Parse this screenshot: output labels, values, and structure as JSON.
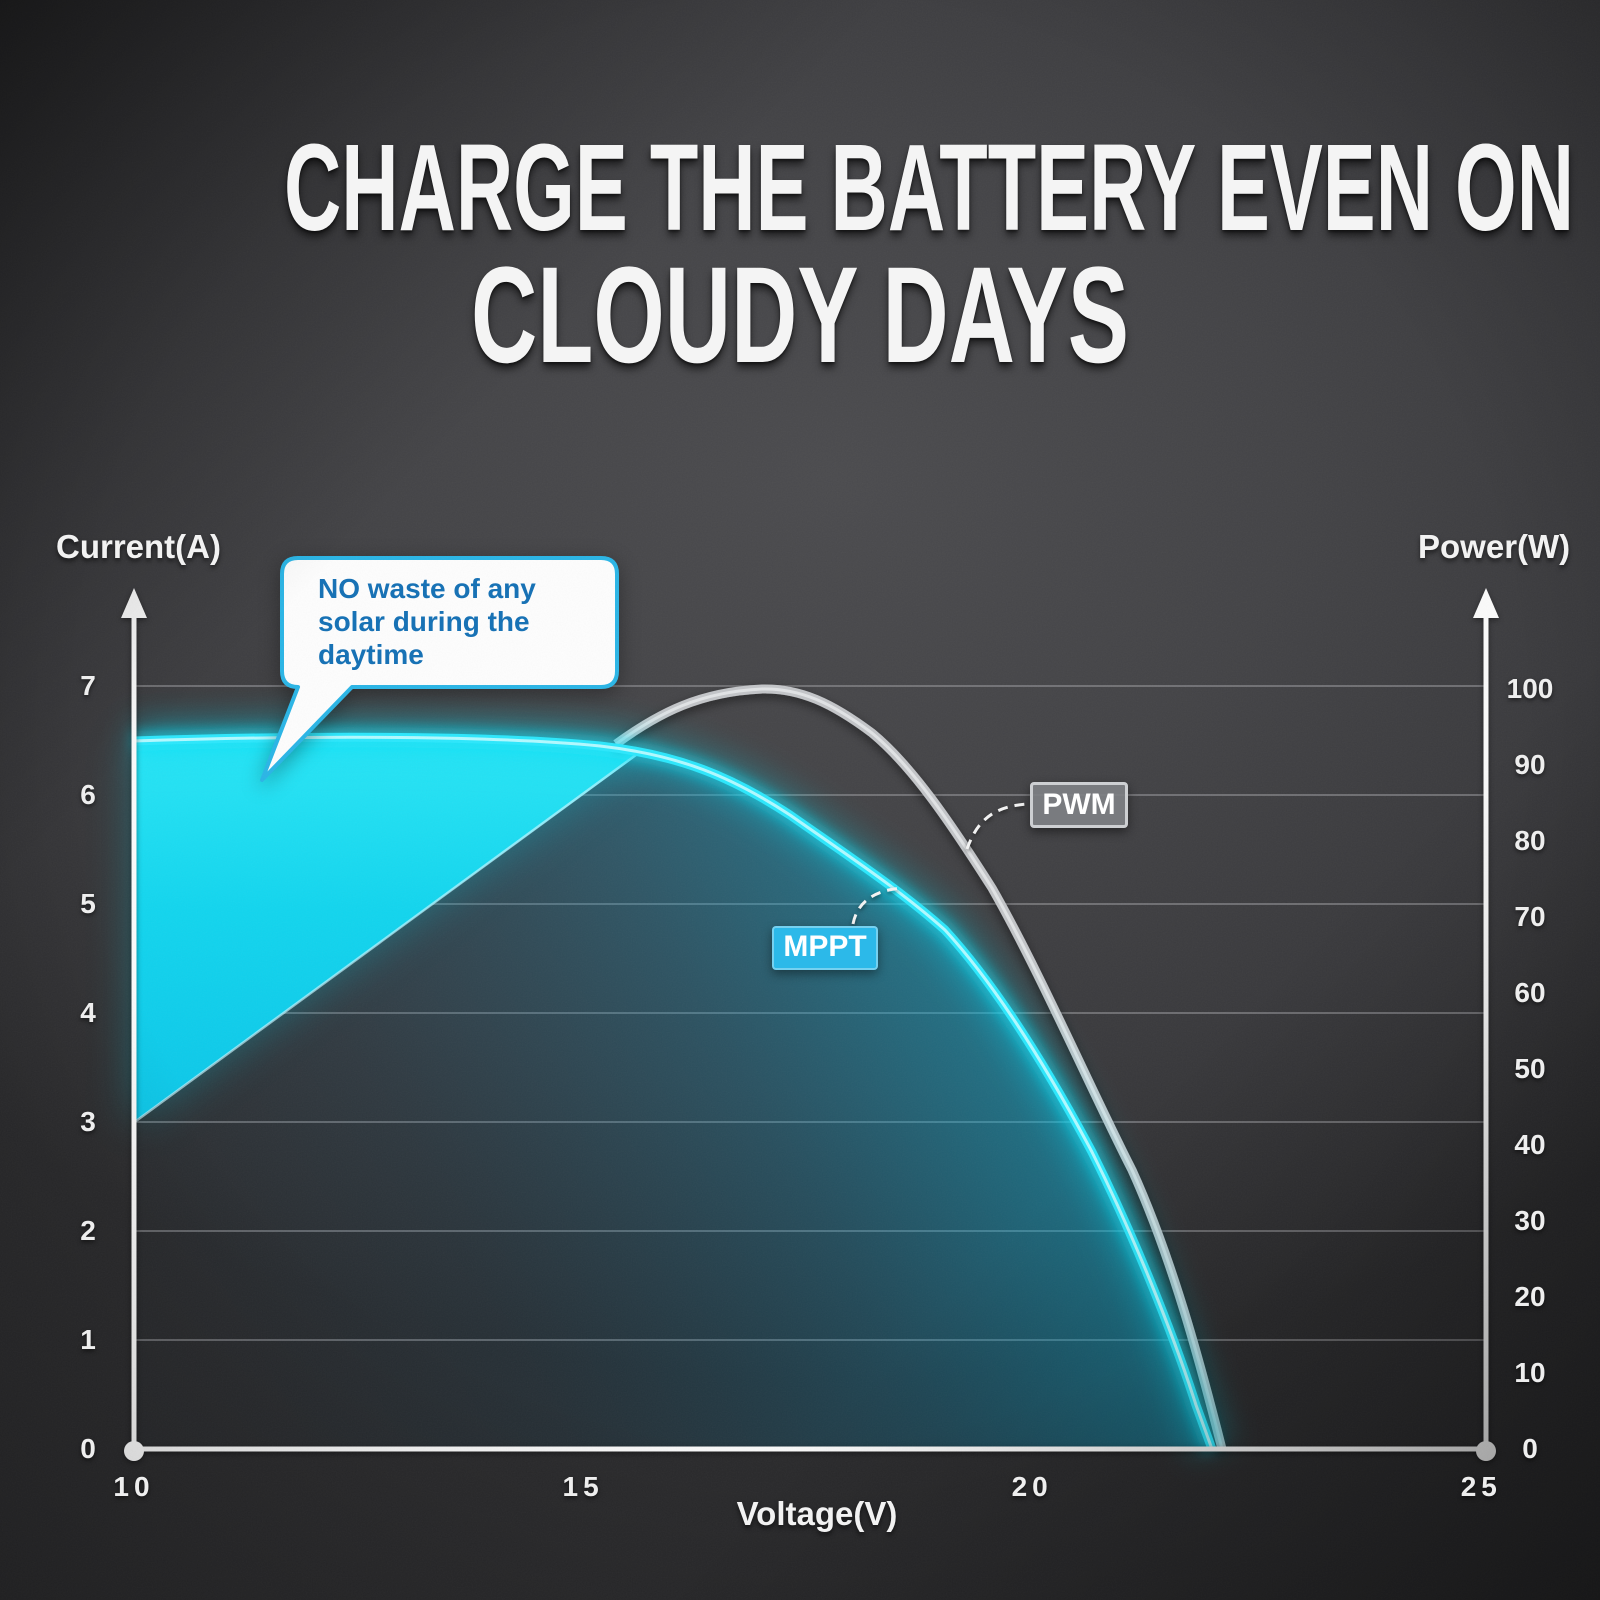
{
  "title": {
    "line1": "CHARGE THE BATTERY EVEN ON",
    "line2": "CLOUDY DAYS"
  },
  "chart": {
    "left_axis_title": "Current(A)",
    "right_axis_title": "Power(W)",
    "x_axis_title": "Voltage(V)",
    "left_ticks": [
      "0",
      "1",
      "2",
      "3",
      "4",
      "5",
      "6",
      "7"
    ],
    "right_ticks": [
      "0",
      "10",
      "20",
      "30",
      "40",
      "50",
      "60",
      "70",
      "80",
      "90",
      "100"
    ],
    "x_ticks": [
      "10",
      "15",
      "20",
      "25"
    ],
    "series_labels": {
      "pwm": "PWM",
      "mppt": "MPPT"
    },
    "callout": {
      "line1": "NO waste of any",
      "line2": "solar during the",
      "line3": "daytime"
    }
  },
  "colors": {
    "accent_cyan": "#17d7ef",
    "cyan_core": "#39e9fd",
    "wedge_top": "#2ae6f6",
    "wedge_bottom": "#0cc6e8",
    "callout_border": "#2ab5e6",
    "callout_text_blue": "#1872b5",
    "pwm_curve_gray": "#c3c5c8",
    "label_box_gray": "#7e8084",
    "mppt_box_cyan": "#2cb9e9",
    "gridline_gray": "#98989c",
    "axis_white": "#fafafa",
    "background_dark": "#3a3a3d"
  },
  "chart_data": {
    "type": "line",
    "title": "MPPT vs PWM solar charging comparison",
    "xlabel": "Voltage(V)",
    "ylabel_left": "Current(A)",
    "ylabel_right": "Power(W)",
    "x_range": [
      10,
      25
    ],
    "ylim_left": [
      0,
      7
    ],
    "ylim_right": [
      0,
      100
    ],
    "grid": "horizontal lines at each left-axis integer 1-7",
    "legend_position": "inline labels with dashed connectors",
    "series": [
      {
        "name": "MPPT (panel I-V curve, left axis, amps)",
        "axis": "left",
        "style": "bright cyan glowing line, area under curve shaded cyan",
        "points_V_A": [
          [
            10,
            6.5
          ],
          [
            11.9,
            6.53
          ],
          [
            13.6,
            6.53
          ],
          [
            15.0,
            6.47
          ],
          [
            15.9,
            6.34
          ],
          [
            16.8,
            6.14
          ],
          [
            17.5,
            5.75
          ],
          [
            18.2,
            5.33
          ],
          [
            18.9,
            4.76
          ],
          [
            19.5,
            4.12
          ],
          [
            20.2,
            3.37
          ],
          [
            20.8,
            2.61
          ],
          [
            21.3,
            1.55
          ],
          [
            21.8,
            0.54
          ],
          [
            22.0,
            0
          ]
        ]
      },
      {
        "name": "PWM (power curve, right axis, watts)",
        "axis": "right",
        "style": "gray line",
        "points_V_W": [
          [
            15.3,
            93
          ],
          [
            15.9,
            98
          ],
          [
            16.3,
            99.9
          ],
          [
            17.1,
            100
          ],
          [
            17.6,
            98.6
          ],
          [
            18.2,
            94.6
          ],
          [
            18.8,
            88.7
          ],
          [
            19.3,
            78.9
          ],
          [
            19.6,
            71.6
          ],
          [
            20.2,
            57.8
          ],
          [
            20.6,
            47.6
          ],
          [
            21.1,
            37.4
          ],
          [
            21.6,
            17.4
          ],
          [
            21.9,
            7.8
          ],
          [
            22.1,
            0
          ]
        ]
      },
      {
        "name": "PWM operating line (diagonal boundary of bright wedge)",
        "axis": "left",
        "style": "straight edge between bright cyan wedge and darker under-curve shading",
        "points_V_A": [
          [
            10,
            3.0
          ],
          [
            15.6,
            6.42
          ]
        ]
      }
    ],
    "annotations": [
      {
        "text": "NO waste of any solar during the daytime",
        "type": "speech-bubble",
        "points_to": "bright cyan wedge near (11.4V, 6A)"
      },
      {
        "text": "PWM",
        "points_to": "gray power curve at ~(19.3V, 79W)"
      },
      {
        "text": "MPPT",
        "points_to": "cyan curve at ~(18.6V, 5.1A)"
      }
    ]
  }
}
